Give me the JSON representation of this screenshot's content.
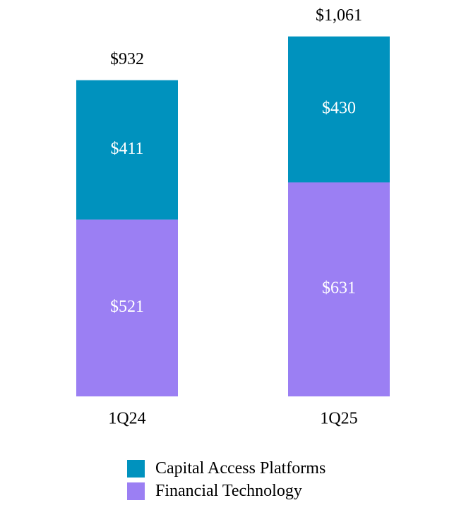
{
  "chart_data": {
    "type": "bar",
    "stacked": true,
    "categories": [
      "1Q24",
      "1Q25"
    ],
    "series": [
      {
        "name": "Financial Technology",
        "values": [
          521,
          631
        ],
        "labels": [
          "$521",
          "$631"
        ],
        "color": "#9b7ff3"
      },
      {
        "name": "Capital Access Platforms",
        "values": [
          411,
          430
        ],
        "labels": [
          "$411",
          "$430"
        ],
        "color": "#0092be"
      }
    ],
    "totals": [
      932,
      1061
    ],
    "total_labels": [
      "$932",
      "$1,061"
    ],
    "legend": {
      "position": "bottom",
      "items": [
        "Capital Access Platforms",
        "Financial Technology"
      ]
    },
    "grid": false
  }
}
